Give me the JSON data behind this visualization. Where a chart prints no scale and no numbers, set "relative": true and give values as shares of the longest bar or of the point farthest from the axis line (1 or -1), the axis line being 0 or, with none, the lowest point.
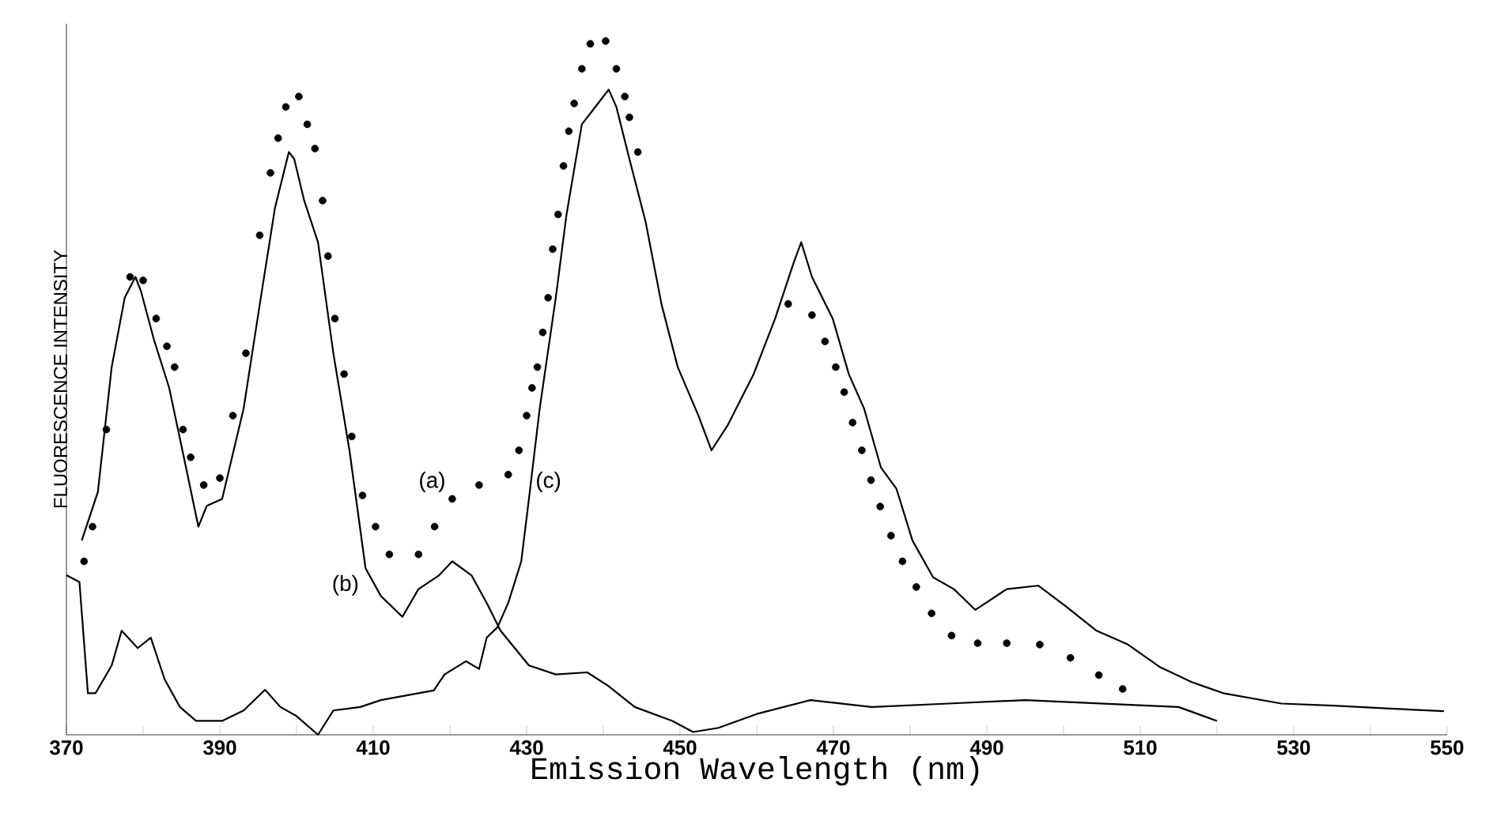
{
  "chart_data": {
    "type": "line",
    "xlabel": "Emission Wavelength (nm)",
    "ylabel": "FLUORESCENCE INTENSITY",
    "relative": true,
    "xlim": [
      370,
      550
    ],
    "xticks": [
      370,
      {
        "value": 380,
        "label": null
      },
      390,
      {
        "value": 400,
        "label": null
      },
      410,
      {
        "value": 420,
        "label": null
      },
      430,
      {
        "value": 440,
        "label": null
      },
      450,
      {
        "value": 460,
        "label": null
      },
      470,
      {
        "value": 480,
        "label": null
      },
      490,
      {
        "value": 500,
        "label": null
      },
      510,
      {
        "value": 520,
        "label": null
      },
      530,
      {
        "value": 540,
        "label": null
      },
      550
    ],
    "grid": false,
    "series": [
      {
        "type": "scatter",
        "marker": "circle",
        "color": "#000000",
        "x": [
          372.3,
          373.4,
          375.2,
          378.3,
          380,
          381.7,
          383.1,
          384.1,
          385.2,
          386.2,
          387.9,
          390,
          391.7,
          393.4,
          395.2,
          396.6,
          397.6,
          398.6,
          400.3,
          401.4,
          402.4,
          403.4,
          404.1,
          405,
          406.2,
          407.2,
          408.6,
          410.3,
          412.1,
          415.9,
          418,
          420.3,
          423.8,
          427.6,
          429,
          430,
          430.7,
          431.4,
          432.1,
          432.8,
          433.4,
          434.1,
          434.8,
          435.5,
          436.2,
          437.2,
          438.3,
          440.3,
          441.7,
          442.8,
          443.4,
          444.5,
          464.1,
          467.2,
          468.9,
          470.3,
          471.4,
          472.5,
          473.7,
          474.9,
          476.1,
          477.5,
          479,
          480.8,
          482.8,
          485.4,
          488.8,
          492.6,
          496.9,
          500.9,
          504.6,
          507.7
        ],
        "values": [
          0.25,
          0.3,
          0.44,
          0.66,
          0.655,
          0.6,
          0.56,
          0.53,
          0.44,
          0.4,
          0.36,
          0.37,
          0.46,
          0.55,
          0.72,
          0.81,
          0.86,
          0.905,
          0.92,
          0.88,
          0.845,
          0.77,
          0.69,
          0.6,
          0.52,
          0.43,
          0.345,
          0.3,
          0.26,
          0.26,
          0.3,
          0.34,
          0.36,
          0.375,
          0.41,
          0.46,
          0.5,
          0.53,
          0.58,
          0.63,
          0.7,
          0.75,
          0.82,
          0.87,
          0.91,
          0.96,
          0.996,
          1,
          0.96,
          0.92,
          0.89,
          0.84,
          0.621,
          0.605,
          0.567,
          0.53,
          0.494,
          0.45,
          0.41,
          0.367,
          0.329,
          0.287,
          0.25,
          0.213,
          0.175,
          0.143,
          0.132,
          0.132,
          0.13,
          0.111,
          0.086,
          0.066
        ]
      },
      {
        "line_style": "solid",
        "color": "#000000",
        "x": [
          372,
          374.1,
          375.9,
          377.6,
          379,
          379.7,
          381.4,
          383.4,
          385.5,
          387.2,
          388.3,
          390.3,
          393.1,
          395.2,
          397.2,
          399,
          399.7,
          401,
          402.8,
          404.8,
          406.9,
          409,
          411,
          413.8,
          415.9,
          418.6,
          420.3,
          422.8,
          424.8,
          426.6,
          430.3,
          433.8,
          437.9,
          440.7,
          444.1,
          449,
          451.7,
          455,
          460,
          467,
          475,
          485,
          495,
          505,
          515,
          520
        ],
        "values": [
          0.28,
          0.35,
          0.53,
          0.63,
          0.66,
          0.64,
          0.57,
          0.5,
          0.39,
          0.3,
          0.33,
          0.34,
          0.47,
          0.62,
          0.76,
          0.84,
          0.83,
          0.77,
          0.71,
          0.55,
          0.41,
          0.24,
          0.2,
          0.17,
          0.21,
          0.23,
          0.25,
          0.23,
          0.19,
          0.15,
          0.1,
          0.087,
          0.09,
          0.07,
          0.04,
          0.02,
          0.004,
          0.01,
          0.03,
          0.05,
          0.04,
          0.045,
          0.05,
          0.045,
          0.04,
          0.02
        ]
      },
      {
        "line_style": "solid",
        "color": "#000000",
        "x": [
          370,
          371.7,
          372.8,
          373.8,
          375.9,
          377.2,
          379.3,
          381,
          382.8,
          384.8,
          386.9,
          390.3,
          393.1,
          395.9,
          397.9,
          400,
          402.8,
          404.8,
          408.3,
          411,
          414.5,
          417.9,
          419.3,
          422.1,
          423.8,
          424.8,
          426.2,
          427.6,
          429.3,
          430.3,
          431.7,
          433.8,
          435.2,
          437.2,
          439.3,
          440.7,
          441.7,
          443.4,
          445.5,
          447.6,
          449.7,
          452.4,
          454.1,
          456.2,
          459.6,
          462.4,
          464.8,
          465.8,
          467.2,
          469.9,
          472,
          474,
          476.2,
          478.2,
          480.3,
          483,
          485.7,
          488.5,
          492.6,
          496.7,
          500.2,
          504.3,
          508.4,
          512.5,
          516.7,
          520.8,
          528.4,
          535.2,
          542.1,
          549.6
        ],
        "values": [
          0.23,
          0.22,
          0.06,
          0.06,
          0.1,
          0.15,
          0.125,
          0.14,
          0.08,
          0.04,
          0.02,
          0.02,
          0.035,
          0.065,
          0.04,
          0.027,
          0,
          0.035,
          0.04,
          0.05,
          0.057,
          0.064,
          0.087,
          0.106,
          0.095,
          0.14,
          0.155,
          0.19,
          0.25,
          0.34,
          0.47,
          0.63,
          0.75,
          0.88,
          0.91,
          0.93,
          0.905,
          0.83,
          0.74,
          0.62,
          0.53,
          0.46,
          0.41,
          0.446,
          0.52,
          0.6,
          0.68,
          0.71,
          0.66,
          0.6,
          0.52,
          0.47,
          0.385,
          0.355,
          0.28,
          0.227,
          0.21,
          0.18,
          0.21,
          0.215,
          0.186,
          0.15,
          0.13,
          0.098,
          0.076,
          0.06,
          0.045,
          0.042,
          0.038,
          0.034
        ]
      }
    ],
    "annotations": [
      {
        "text": "(a)",
        "x": 420.3,
        "y": 0.34
      },
      {
        "text": "(b)",
        "x": 409,
        "y": 0.24
      },
      {
        "text": "(c)",
        "x": 430.3,
        "y": 0.34
      }
    ]
  }
}
